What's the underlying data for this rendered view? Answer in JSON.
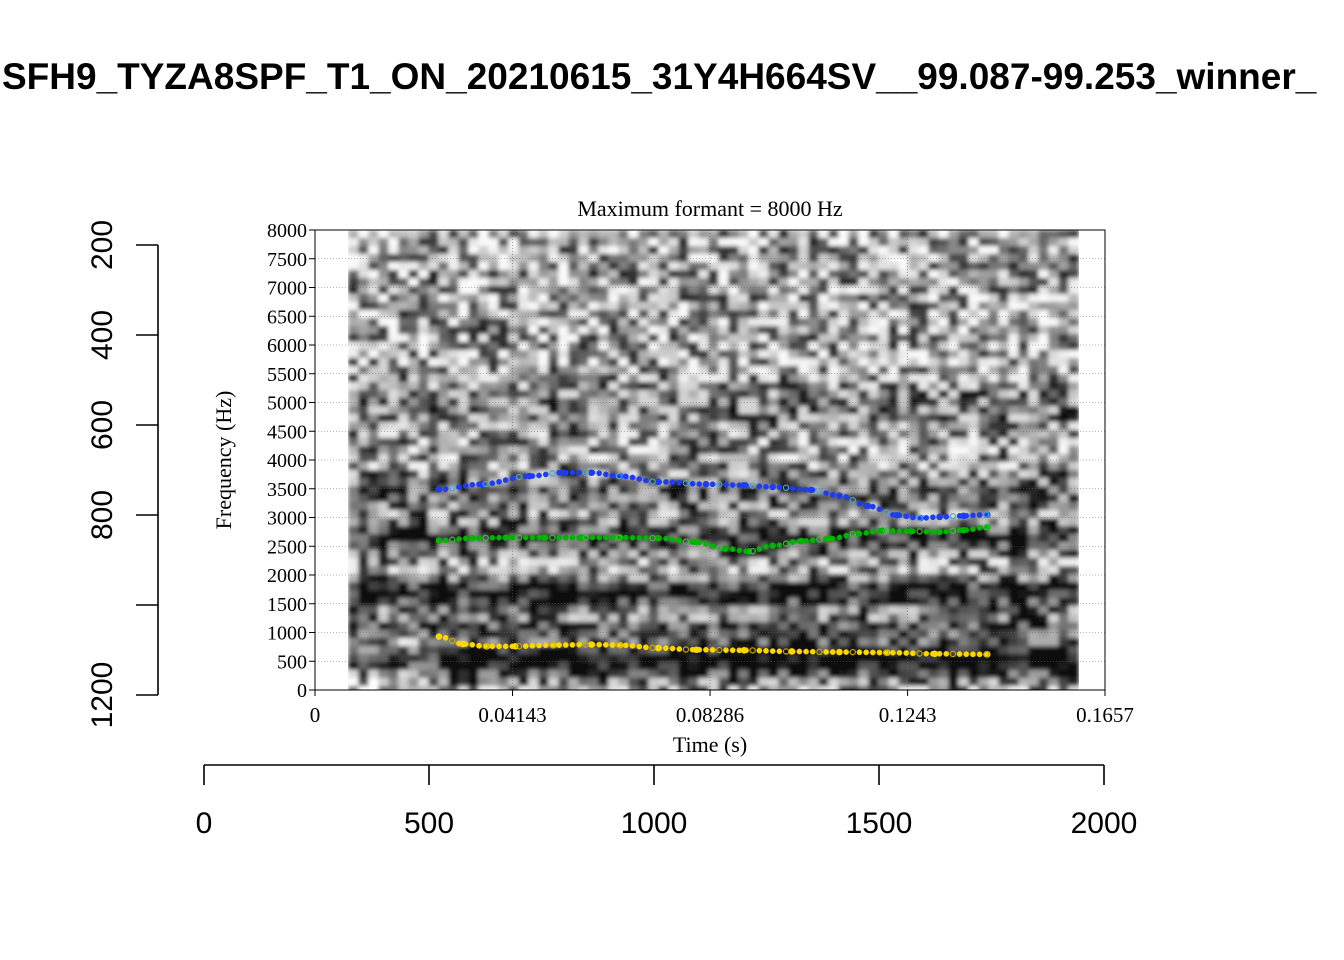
{
  "page_title": "SFH9_TYZA8SPF_T1_ON_20210615_31Y4H664SV__99.087-99.253_winner_",
  "colors": {
    "f1": "#ffd700",
    "f1_dark": "#c8a800",
    "f2": "#00b400",
    "f2_light": "#35c435",
    "f3": "#1e3cf0",
    "f3_light": "#49a6d8",
    "spectrogram_light": "#ffffff",
    "spectrogram_dark": "#141414"
  },
  "chart_data": [
    {
      "type": "spectrogram",
      "title": "Maximum formant  =  8000 Hz",
      "xlabel": "Time (s)",
      "ylabel": "Frequency (Hz)",
      "xlim": [
        0,
        0.1657
      ],
      "ylim": [
        0,
        8000
      ],
      "x_ticks": [
        "0",
        "0.04143",
        "0.08286",
        "0.1243",
        "0.1657"
      ],
      "y_ticks": [
        "0",
        "500",
        "1000",
        "1500",
        "2000",
        "2500",
        "3000",
        "3500",
        "4000",
        "4500",
        "5000",
        "5500",
        "6000",
        "6500",
        "7000",
        "7500",
        "8000"
      ],
      "grid": true,
      "spectrogram_time_range": [
        0.007,
        0.159
      ],
      "series": [
        {
          "key": "f3",
          "color": "#1e3cf0",
          "x": [
            0.026,
            0.035,
            0.045,
            0.052,
            0.058,
            0.064,
            0.072,
            0.082,
            0.09,
            0.096,
            0.104,
            0.11,
            0.116,
            0.122,
            0.127,
            0.131,
            0.136,
            0.141
          ],
          "y": [
            3490,
            3580,
            3720,
            3780,
            3780,
            3720,
            3620,
            3580,
            3560,
            3530,
            3480,
            3380,
            3200,
            3040,
            2990,
            3010,
            3030,
            3050
          ]
        },
        {
          "key": "f2",
          "color": "#00b400",
          "x": [
            0.026,
            0.033,
            0.04,
            0.048,
            0.056,
            0.064,
            0.072,
            0.08,
            0.086,
            0.091,
            0.096,
            0.102,
            0.108,
            0.114,
            0.119,
            0.125,
            0.131,
            0.136,
            0.141
          ],
          "y": [
            2600,
            2640,
            2650,
            2650,
            2650,
            2650,
            2640,
            2570,
            2460,
            2410,
            2510,
            2590,
            2630,
            2720,
            2770,
            2760,
            2750,
            2780,
            2830
          ]
        },
        {
          "key": "f1",
          "color": "#ffd700",
          "x": [
            0.026,
            0.031,
            0.036,
            0.042,
            0.05,
            0.058,
            0.064,
            0.072,
            0.08,
            0.09,
            0.1,
            0.11,
            0.12,
            0.13,
            0.141
          ],
          "y": [
            930,
            800,
            760,
            760,
            780,
            790,
            780,
            730,
            700,
            690,
            670,
            660,
            650,
            630,
            620
          ]
        }
      ]
    },
    {
      "type": "axis",
      "orientation": "vertical",
      "ylim": [
        200,
        1200
      ],
      "reversed": true,
      "tick_values": [
        200,
        400,
        600,
        800,
        1000,
        1200
      ],
      "tick_labels": [
        "200",
        "400",
        "600",
        "800",
        "",
        "1200"
      ]
    },
    {
      "type": "axis",
      "orientation": "horizontal",
      "xlim": [
        0,
        2000
      ],
      "tick_values": [
        0,
        500,
        1000,
        1500,
        2000
      ],
      "tick_labels": [
        "0",
        "500",
        "1000",
        "1500",
        "2000"
      ]
    }
  ]
}
